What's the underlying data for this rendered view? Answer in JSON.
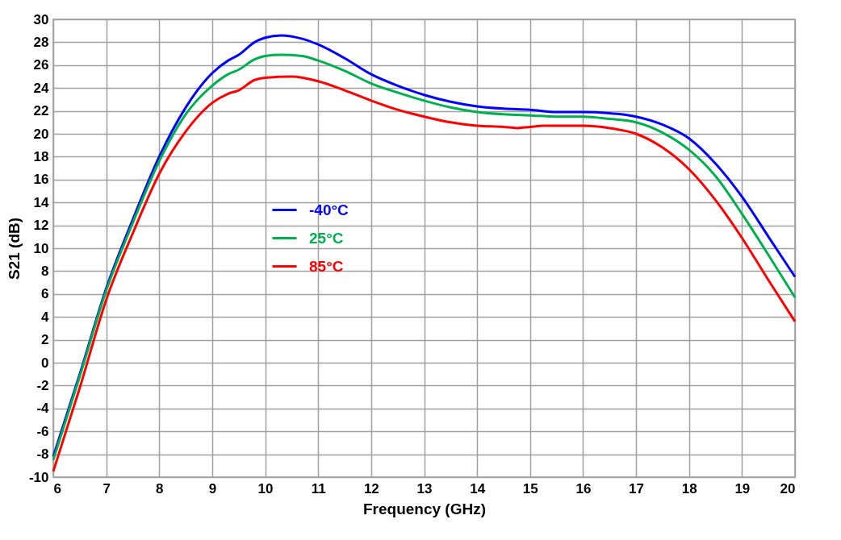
{
  "chart_data": {
    "type": "line",
    "xlabel": "Frequency (GHz)",
    "ylabel": "S21 (dB)",
    "xlim": [
      6,
      20
    ],
    "ylim": [
      -10,
      30
    ],
    "xticks": [
      6,
      7,
      8,
      9,
      10,
      11,
      12,
      13,
      14,
      15,
      16,
      17,
      18,
      19,
      20
    ],
    "yticks": [
      -10,
      -8,
      -6,
      -4,
      -2,
      0,
      2,
      4,
      6,
      8,
      10,
      12,
      14,
      16,
      18,
      20,
      22,
      24,
      26,
      28,
      30
    ],
    "grid": true,
    "legend": "left",
    "line_style": "solid",
    "marker": "none",
    "series": [
      {
        "name": "-40°C",
        "color": "#0000ff",
        "x": [
          6,
          6.5,
          7,
          7.5,
          8,
          8.5,
          9,
          9.3,
          9.5,
          9.8,
          10,
          10.3,
          10.7,
          11,
          11.5,
          12,
          12.5,
          13,
          13.5,
          14,
          14.5,
          15,
          15.5,
          16,
          16.5,
          17,
          17.5,
          18,
          18.5,
          19,
          19.5,
          20
        ],
        "values": [
          -8.2,
          -1,
          6.5,
          12.5,
          18,
          22.3,
          25.3,
          26.4,
          26.9,
          28.0,
          28.4,
          28.6,
          28.3,
          27.8,
          26.6,
          25.2,
          24.2,
          23.4,
          22.8,
          22.4,
          22.2,
          22.1,
          21.9,
          21.9,
          21.8,
          21.5,
          20.8,
          19.6,
          17.4,
          14.5,
          11.0,
          7.5
        ]
      },
      {
        "name": "25°C",
        "color": "#00b050",
        "x": [
          6,
          6.5,
          7,
          7.5,
          8,
          8.5,
          9,
          9.3,
          9.5,
          9.8,
          10,
          10.3,
          10.7,
          11,
          11.5,
          12,
          12.5,
          13,
          13.5,
          14,
          14.5,
          15,
          15.5,
          16,
          16.5,
          17,
          17.5,
          18,
          18.5,
          19,
          19.5,
          20
        ],
        "values": [
          -8.5,
          -1.2,
          6.3,
          12.2,
          17.6,
          21.7,
          24.2,
          25.2,
          25.6,
          26.5,
          26.8,
          26.9,
          26.8,
          26.4,
          25.5,
          24.4,
          23.6,
          22.9,
          22.3,
          21.9,
          21.7,
          21.6,
          21.5,
          21.5,
          21.3,
          21.0,
          20.1,
          18.6,
          16.3,
          13.0,
          9.4,
          5.7
        ]
      },
      {
        "name": "85°C",
        "color": "#ff0000",
        "x": [
          6,
          6.5,
          7,
          7.5,
          8,
          8.5,
          9,
          9.3,
          9.5,
          9.8,
          10,
          10.5,
          11,
          11.5,
          12,
          12.5,
          13,
          13.5,
          14,
          14.5,
          14.75,
          15,
          15.25,
          16,
          16.5,
          17,
          17.5,
          18,
          18.5,
          19,
          19.5,
          20
        ],
        "values": [
          -9.5,
          -2.2,
          5.5,
          11.3,
          16.5,
          20.2,
          22.7,
          23.5,
          23.8,
          24.7,
          24.9,
          25.0,
          24.6,
          23.8,
          22.9,
          22.1,
          21.5,
          21.0,
          20.7,
          20.6,
          20.5,
          20.6,
          20.7,
          20.7,
          20.5,
          20.0,
          18.8,
          16.9,
          14.2,
          10.9,
          7.2,
          3.6
        ]
      }
    ]
  }
}
